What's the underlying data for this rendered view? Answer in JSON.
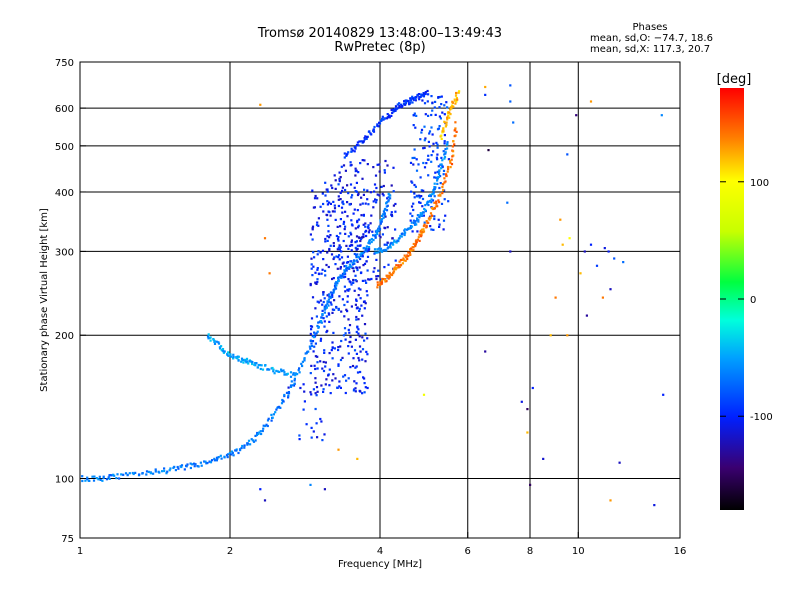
{
  "header": {
    "title_line1": "Tromsø 20140829 13:48:00–13:49:43",
    "title_line2": "RwPretec (8p)"
  },
  "stats": {
    "heading": "Phases",
    "line_o": "mean, sd,O: −74.7, 18.6",
    "line_x": "mean, sd,X: 117.3, 20.7"
  },
  "chart_data": {
    "type": "scatter",
    "title": "Tromsø 20140829 13:48:00–13:49:43",
    "subtitle": "RwPretec (8p)",
    "xlabel": "Frequency [MHz]",
    "ylabel": "Stationary phase Virtual Height [km]",
    "x_scale": "log",
    "y_scale": "log",
    "xlim": [
      1,
      16
    ],
    "ylim": [
      75,
      750
    ],
    "x_ticks": [
      1,
      2,
      4,
      6,
      8,
      10,
      16
    ],
    "y_ticks": [
      75,
      100,
      200,
      300,
      400,
      500,
      600,
      750
    ],
    "x_gridlines": [
      2,
      4,
      6,
      8,
      10
    ],
    "y_gridlines": [
      100,
      200,
      300,
      400,
      500,
      600
    ],
    "grid": true,
    "colorbar": {
      "label": "[deg]",
      "range": [
        -180,
        180
      ],
      "ticks": [
        100,
        0,
        -100
      ],
      "colors": [
        "#000000",
        "#3a0070",
        "#0020ff",
        "#00a0ff",
        "#00ffdc",
        "#00ff40",
        "#c8ff00",
        "#ffff00",
        "#ff8000",
        "#ff0000"
      ]
    },
    "traces": [
      {
        "phase": -65,
        "x": [
          1.0,
          1.1,
          1.2,
          1.35,
          1.5,
          1.65,
          1.8,
          1.95,
          2.1,
          2.25,
          2.4,
          2.55,
          2.7,
          2.85,
          3.0,
          3.1,
          3.2,
          3.3,
          3.45,
          3.6,
          3.75,
          3.9,
          4.0,
          4.1,
          4.2
        ],
        "y": [
          100,
          100,
          101,
          103,
          104,
          106,
          108,
          111,
          115,
          122,
          132,
          145,
          162,
          183,
          208,
          225,
          245,
          262,
          278,
          292,
          305,
          322,
          340,
          365,
          400
        ]
      },
      {
        "phase": -95,
        "x": [
          3.4,
          3.6,
          3.8,
          4.0,
          4.2,
          4.35,
          4.5,
          4.65,
          4.8,
          5.0
        ],
        "y": [
          475,
          500,
          530,
          560,
          585,
          605,
          615,
          625,
          635,
          645
        ]
      },
      {
        "phase": -60,
        "x": [
          3.9,
          4.1,
          4.3,
          4.5,
          4.7,
          4.85,
          5.0,
          5.15,
          5.3,
          5.5
        ],
        "y": [
          300,
          305,
          315,
          330,
          345,
          360,
          380,
          410,
          450,
          520
        ]
      },
      {
        "phase": -50,
        "x": [
          1.8,
          1.9,
          2.0,
          2.1,
          2.2,
          2.3,
          2.5,
          2.7
        ],
        "y": [
          200,
          190,
          182,
          178,
          175,
          172,
          168,
          165
        ]
      },
      {
        "phase": 140,
        "x": [
          3.95,
          4.1,
          4.25,
          4.4,
          4.55,
          4.7,
          4.85,
          5.0,
          5.2,
          5.4,
          5.6,
          5.7
        ],
        "y": [
          255,
          262,
          272,
          283,
          295,
          310,
          330,
          350,
          380,
          420,
          480,
          560
        ]
      },
      {
        "phase": 120,
        "x": [
          5.3,
          5.45,
          5.6,
          5.75
        ],
        "y": [
          520,
          570,
          610,
          650
        ]
      }
    ],
    "clouds": [
      {
        "phase": -100,
        "x_range": [
          2.9,
          3.8
        ],
        "y_range": [
          150,
          420
        ],
        "n": 420
      },
      {
        "phase": -105,
        "x_range": [
          3.2,
          4.3
        ],
        "y_range": [
          260,
          470
        ],
        "n": 160
      },
      {
        "phase": -90,
        "x_range": [
          4.6,
          5.5
        ],
        "y_range": [
          330,
          640
        ],
        "n": 150
      },
      {
        "phase": -95,
        "x_range": [
          2.6,
          3.1
        ],
        "y_range": [
          120,
          160
        ],
        "n": 25
      }
    ],
    "scatter_points": [
      {
        "x": 6.5,
        "y": 665,
        "phase": 125
      },
      {
        "x": 6.5,
        "y": 640,
        "phase": -95
      },
      {
        "x": 7.3,
        "y": 670,
        "phase": -80
      },
      {
        "x": 7.3,
        "y": 620,
        "phase": -75
      },
      {
        "x": 7.4,
        "y": 560,
        "phase": -70
      },
      {
        "x": 7.2,
        "y": 380,
        "phase": -70
      },
      {
        "x": 7.3,
        "y": 300,
        "phase": -120
      },
      {
        "x": 6.6,
        "y": 490,
        "phase": -160
      },
      {
        "x": 6.5,
        "y": 185,
        "phase": -130
      },
      {
        "x": 7.7,
        "y": 145,
        "phase": -110
      },
      {
        "x": 7.9,
        "y": 140,
        "phase": -150
      },
      {
        "x": 8.0,
        "y": 97,
        "phase": -150
      },
      {
        "x": 8.5,
        "y": 110,
        "phase": -115
      },
      {
        "x": 7.9,
        "y": 125,
        "phase": 120
      },
      {
        "x": 8.1,
        "y": 155,
        "phase": -100
      },
      {
        "x": 9.5,
        "y": 480,
        "phase": -80
      },
      {
        "x": 9.9,
        "y": 580,
        "phase": -140
      },
      {
        "x": 10.6,
        "y": 620,
        "phase": 130
      },
      {
        "x": 14.7,
        "y": 580,
        "phase": -60
      },
      {
        "x": 9.2,
        "y": 350,
        "phase": 130
      },
      {
        "x": 9.6,
        "y": 320,
        "phase": 100
      },
      {
        "x": 9.3,
        "y": 310,
        "phase": 120
      },
      {
        "x": 9.0,
        "y": 240,
        "phase": 140
      },
      {
        "x": 9.5,
        "y": 200,
        "phase": 130
      },
      {
        "x": 8.8,
        "y": 200,
        "phase": 120
      },
      {
        "x": 10.3,
        "y": 300,
        "phase": -120
      },
      {
        "x": 10.6,
        "y": 310,
        "phase": -100
      },
      {
        "x": 10.9,
        "y": 280,
        "phase": -90
      },
      {
        "x": 10.1,
        "y": 270,
        "phase": 120
      },
      {
        "x": 11.3,
        "y": 305,
        "phase": -110
      },
      {
        "x": 11.5,
        "y": 300,
        "phase": -105
      },
      {
        "x": 11.8,
        "y": 290,
        "phase": -80
      },
      {
        "x": 11.2,
        "y": 240,
        "phase": 140
      },
      {
        "x": 12.3,
        "y": 285,
        "phase": -70
      },
      {
        "x": 10.4,
        "y": 220,
        "phase": -130
      },
      {
        "x": 11.6,
        "y": 250,
        "phase": -120
      },
      {
        "x": 12.1,
        "y": 108,
        "phase": -120
      },
      {
        "x": 11.6,
        "y": 90,
        "phase": 130
      },
      {
        "x": 14.2,
        "y": 88,
        "phase": -110
      },
      {
        "x": 14.8,
        "y": 150,
        "phase": -100
      },
      {
        "x": 2.3,
        "y": 610,
        "phase": 130
      },
      {
        "x": 2.35,
        "y": 320,
        "phase": 140
      },
      {
        "x": 2.4,
        "y": 270,
        "phase": 140
      },
      {
        "x": 2.3,
        "y": 95,
        "phase": -100
      },
      {
        "x": 2.35,
        "y": 90,
        "phase": -120
      },
      {
        "x": 2.9,
        "y": 97,
        "phase": -60
      },
      {
        "x": 3.1,
        "y": 95,
        "phase": -120
      },
      {
        "x": 3.3,
        "y": 115,
        "phase": 130
      },
      {
        "x": 3.6,
        "y": 110,
        "phase": 120
      },
      {
        "x": 4.9,
        "y": 150,
        "phase": 90
      }
    ]
  }
}
